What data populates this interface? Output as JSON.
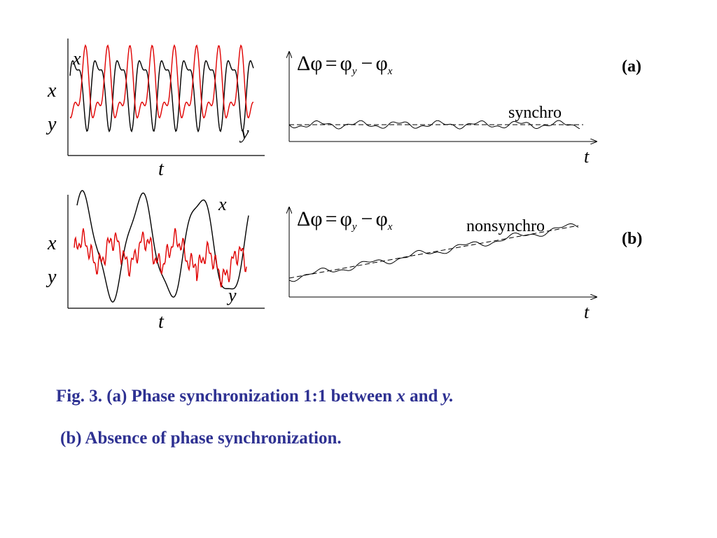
{
  "panels": [
    {
      "tag": "(a)",
      "left_plot": {
        "axis_label_x": "x",
        "axis_label_y": "y",
        "time_label": "t",
        "trace_label_x": "x",
        "trace_label_y": "y",
        "x_color": "#000000",
        "y_color": "#e00000"
      },
      "right_plot": {
        "eq_lhs": "Δφ",
        "eq_eq": "=",
        "eq_phi_y": "φ",
        "eq_sub_y": "y",
        "eq_minus": "−",
        "eq_phi_x": "φ",
        "eq_sub_x": "x",
        "time_label": "t",
        "state_label": "synchro"
      }
    },
    {
      "tag": "(b)",
      "left_plot": {
        "axis_label_x": "x",
        "axis_label_y": "y",
        "time_label": "t",
        "trace_label_x": "x",
        "trace_label_y": "y",
        "x_color": "#000000",
        "y_color": "#e00000"
      },
      "right_plot": {
        "eq_lhs": "Δφ",
        "eq_eq": "=",
        "eq_phi_y": "φ",
        "eq_sub_y": "y",
        "eq_minus": "−",
        "eq_phi_x": "φ",
        "eq_sub_x": "x",
        "time_label": "t",
        "state_label": "nonsynchro"
      }
    }
  ],
  "caption": {
    "line1_prefix": "Fig. 3. (a) Phase synchronization 1:1 between ",
    "line1_x": "x",
    "line1_and": " and ",
    "line1_y": "y.",
    "line2": "(b) Absence of phase synchronization."
  }
}
